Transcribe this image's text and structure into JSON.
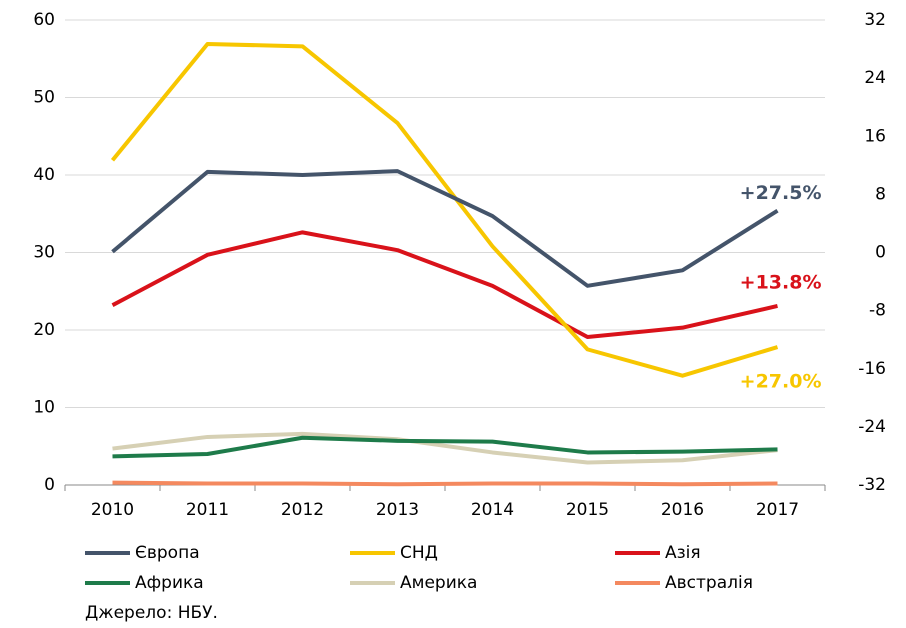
{
  "chart_data": {
    "type": "line",
    "categories": [
      "2010",
      "2011",
      "2012",
      "2013",
      "2014",
      "2015",
      "2016",
      "2017"
    ],
    "series": [
      {
        "name": "Європа",
        "color": "#44546a",
        "values": [
          30.1,
          40.4,
          40.0,
          40.5,
          34.7,
          25.7,
          27.7,
          35.4
        ],
        "annotation": "+27.5%"
      },
      {
        "name": "СНД",
        "color": "#f7c600",
        "values": [
          41.9,
          56.9,
          56.6,
          46.7,
          30.8,
          17.5,
          14.1,
          17.8
        ],
        "annotation": "+27.0%"
      },
      {
        "name": "Азія",
        "color": "#d9121a",
        "values": [
          23.2,
          29.7,
          32.6,
          30.3,
          25.7,
          19.1,
          20.3,
          23.1
        ],
        "annotation": "+13.8%"
      },
      {
        "name": "Африка",
        "color": "#1e7b4a",
        "values": [
          3.7,
          4.0,
          6.1,
          5.7,
          5.6,
          4.2,
          4.3,
          4.6
        ]
      },
      {
        "name": "Америка",
        "color": "#d6d0b4",
        "values": [
          4.7,
          6.2,
          6.6,
          5.9,
          4.2,
          2.9,
          3.2,
          4.5
        ]
      },
      {
        "name": "Австралія",
        "color": "#f4895f",
        "values": [
          0.3,
          0.2,
          0.2,
          0.1,
          0.2,
          0.2,
          0.1,
          0.2
        ]
      }
    ],
    "ylim": [
      0,
      60
    ],
    "yticks": [
      0,
      10,
      20,
      30,
      40,
      50,
      60
    ],
    "y2lim": [
      -32,
      32
    ],
    "y2ticks": [
      -32,
      -24,
      -16,
      -8,
      0,
      8,
      16,
      24,
      32
    ],
    "grid": true,
    "source": "Джерело: НБУ."
  }
}
